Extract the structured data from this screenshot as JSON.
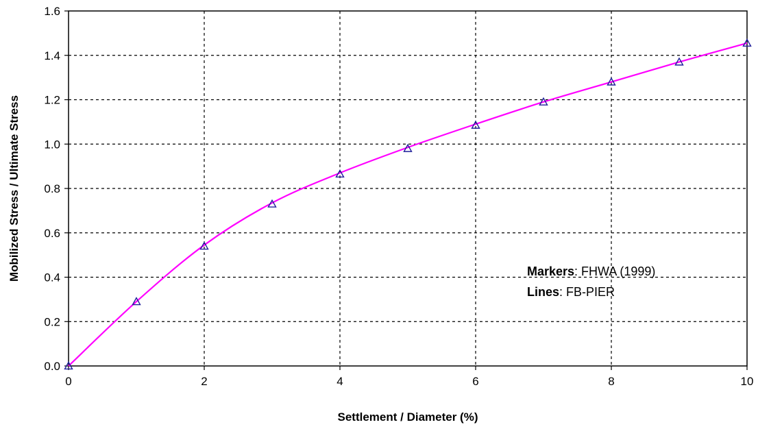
{
  "chart_data": {
    "type": "line",
    "xlabel": "Settlement / Diameter (%)",
    "ylabel": "Mobilized Stress / Ultimate Stress",
    "xlim": [
      0,
      10
    ],
    "ylim": [
      0,
      1.6
    ],
    "x_ticks": [
      "0",
      "2",
      "4",
      "6",
      "8",
      "10"
    ],
    "y_ticks": [
      "0.0",
      "0.2",
      "0.4",
      "0.6",
      "0.8",
      "1.0",
      "1.2",
      "1.4",
      "1.6"
    ],
    "grid": true,
    "series": [
      {
        "name": "FHWA (1999)",
        "kind": "markers",
        "marker": "triangle",
        "color": "#1f1f9a",
        "x": [
          0,
          1,
          2,
          3,
          4,
          5,
          6,
          7,
          8,
          9,
          10
        ],
        "y": [
          0.0,
          0.29,
          0.54,
          0.73,
          0.865,
          0.98,
          1.085,
          1.19,
          1.28,
          1.37,
          1.455
        ]
      },
      {
        "name": "FB-PIER",
        "kind": "line",
        "color": "#ff00ff",
        "x": [
          0,
          1,
          2,
          3,
          4,
          5,
          6,
          7,
          8,
          9,
          10
        ],
        "y": [
          0.0,
          0.29,
          0.545,
          0.735,
          0.87,
          0.985,
          1.09,
          1.19,
          1.28,
          1.37,
          1.455
        ]
      }
    ],
    "annotation": {
      "line1_bold": "Markers",
      "line1_rest": ": FHWA (1999)",
      "line2_bold": "Lines",
      "line2_rest": ": FB-PIER"
    }
  }
}
